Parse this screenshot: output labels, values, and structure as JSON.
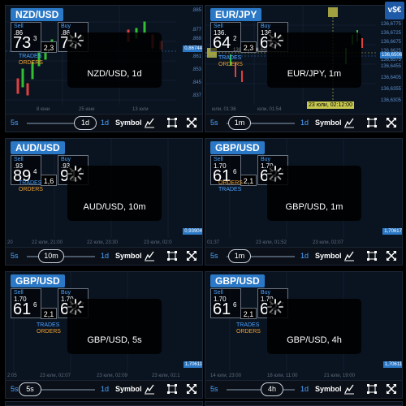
{
  "app": {
    "currency_button": "v$€"
  },
  "panels": [
    {
      "symbol": "NZD/USD",
      "sell": {
        "label": "Sell",
        "prefix": ".86",
        "big": "73",
        "sup": "3"
      },
      "buy": {
        "label": "Buy",
        "prefix": ".86",
        "big": "75",
        "sup": "6"
      },
      "spread": "2,3",
      "links": [
        "TRADES",
        "ORDERS"
      ],
      "loading_text": "NZD/USD, 1d",
      "price_labels": [
        ".885",
        ".877",
        ".869",
        ".861",
        ".853",
        ".845",
        ".837"
      ],
      "current_price": "0,86744",
      "x_labels": [
        "8 юни",
        "25 юни",
        "13 юли"
      ],
      "timeframe_left": "5s",
      "timeframe_selected": "1d",
      "timeframe_right": "1d",
      "symbol_button": "Symbol"
    },
    {
      "symbol": "EUR/JPY",
      "sell": {
        "label": "Sell",
        "prefix": "136.",
        "big": "64",
        "sup": "2"
      },
      "buy": {
        "label": "Buy",
        "prefix": "136.",
        "big": "66",
        "sup": "5"
      },
      "spread": "2,3",
      "links": [
        "TRADES",
        "ORDERS"
      ],
      "crosshair_prices": [
        "136,6435",
        "136,645"
      ],
      "loading_text": "EUR/JPY, 1m",
      "price_labels": [
        "136,6775",
        "136,6725",
        "136,6675",
        "136,6625",
        "136,6575",
        "136,6506",
        "136,6455",
        "136,6405",
        "136,6355",
        "136,6305"
      ],
      "current_price": "136,6506",
      "x_labels": [
        "юли, 01:36",
        "юли, 01:54",
        "23 юли, 02:12:00"
      ],
      "timeframe_left": "5s",
      "timeframe_selected": "1m",
      "timeframe_right": "1d",
      "symbol_button": "Symbol"
    },
    {
      "symbol": "AUD/USD",
      "sell": {
        "label": "Sell",
        "prefix": ".93",
        "big": "89",
        "sup": "4"
      },
      "buy": {
        "label": "Buy",
        "prefix": ".93",
        "big": "91",
        "sup": "0"
      },
      "spread": "1,6",
      "links": [
        "TRADES",
        "ORDERS"
      ],
      "loading_text": "AUD/USD, 10m",
      "price_labels": [],
      "current_price": "0,93904",
      "x_labels": [
        "20",
        "22 юли, 21:00",
        "22 юли, 23:30",
        "23 юли, 02:0"
      ],
      "timeframe_left": "5s",
      "timeframe_selected": "10m",
      "timeframe_right": "1d",
      "symbol_button": "Symbol"
    },
    {
      "symbol": "GBP/USD",
      "sell": {
        "label": "Sell",
        "prefix": "1.70",
        "big": "61",
        "sup": "6"
      },
      "buy": {
        "label": "Buy",
        "prefix": "1.70",
        "big": "63",
        "sup": "7"
      },
      "spread": "2,1",
      "links": [
        "ORDERS",
        "TRADES"
      ],
      "loading_text": "GBP/USD, 1m",
      "price_labels": [],
      "current_price": "1,70617",
      "x_labels": [
        "01:37",
        "23 юли, 01:52",
        "23 юли, 02:07"
      ],
      "timeframe_left": "5s",
      "timeframe_selected": "1m",
      "timeframe_right": "1d",
      "symbol_button": "Symbol"
    },
    {
      "symbol": "GBP/USD",
      "sell": {
        "label": "Sell",
        "prefix": "1.70",
        "big": "61",
        "sup": "6"
      },
      "buy": {
        "label": "Buy",
        "prefix": "1.70",
        "big": "63",
        "sup": "7"
      },
      "spread": "2,1",
      "links": [
        "TRADES",
        "ORDERS"
      ],
      "loading_text": "GBP/USD, 5s",
      "price_labels": [],
      "current_price": "1,70611",
      "x_labels": [
        "2:05",
        "23 юли, 02:07",
        "23 юли, 02:09",
        "23 юли, 02:1"
      ],
      "timeframe_left": "5s",
      "timeframe_selected": "5s",
      "timeframe_right": "1d",
      "symbol_button": "Symbol"
    },
    {
      "symbol": "GBP/USD",
      "sell": {
        "label": "Sell",
        "prefix": "1.70",
        "big": "61",
        "sup": "6"
      },
      "buy": {
        "label": "Buy",
        "prefix": "1.70",
        "big": "63",
        "sup": "7"
      },
      "spread": "2,1",
      "links": [
        "TRADES",
        "ORDERS"
      ],
      "loading_text": "GBP/USD, 4h",
      "price_labels": [],
      "current_price": "1,70611",
      "x_labels": [
        "14 юли, 23:00",
        "18 юли, 11:00",
        "21 юли, 19:00"
      ],
      "timeframe_left": "5s",
      "timeframe_selected": "4h",
      "timeframe_right": "1d",
      "symbol_button": "Symbol"
    }
  ]
}
